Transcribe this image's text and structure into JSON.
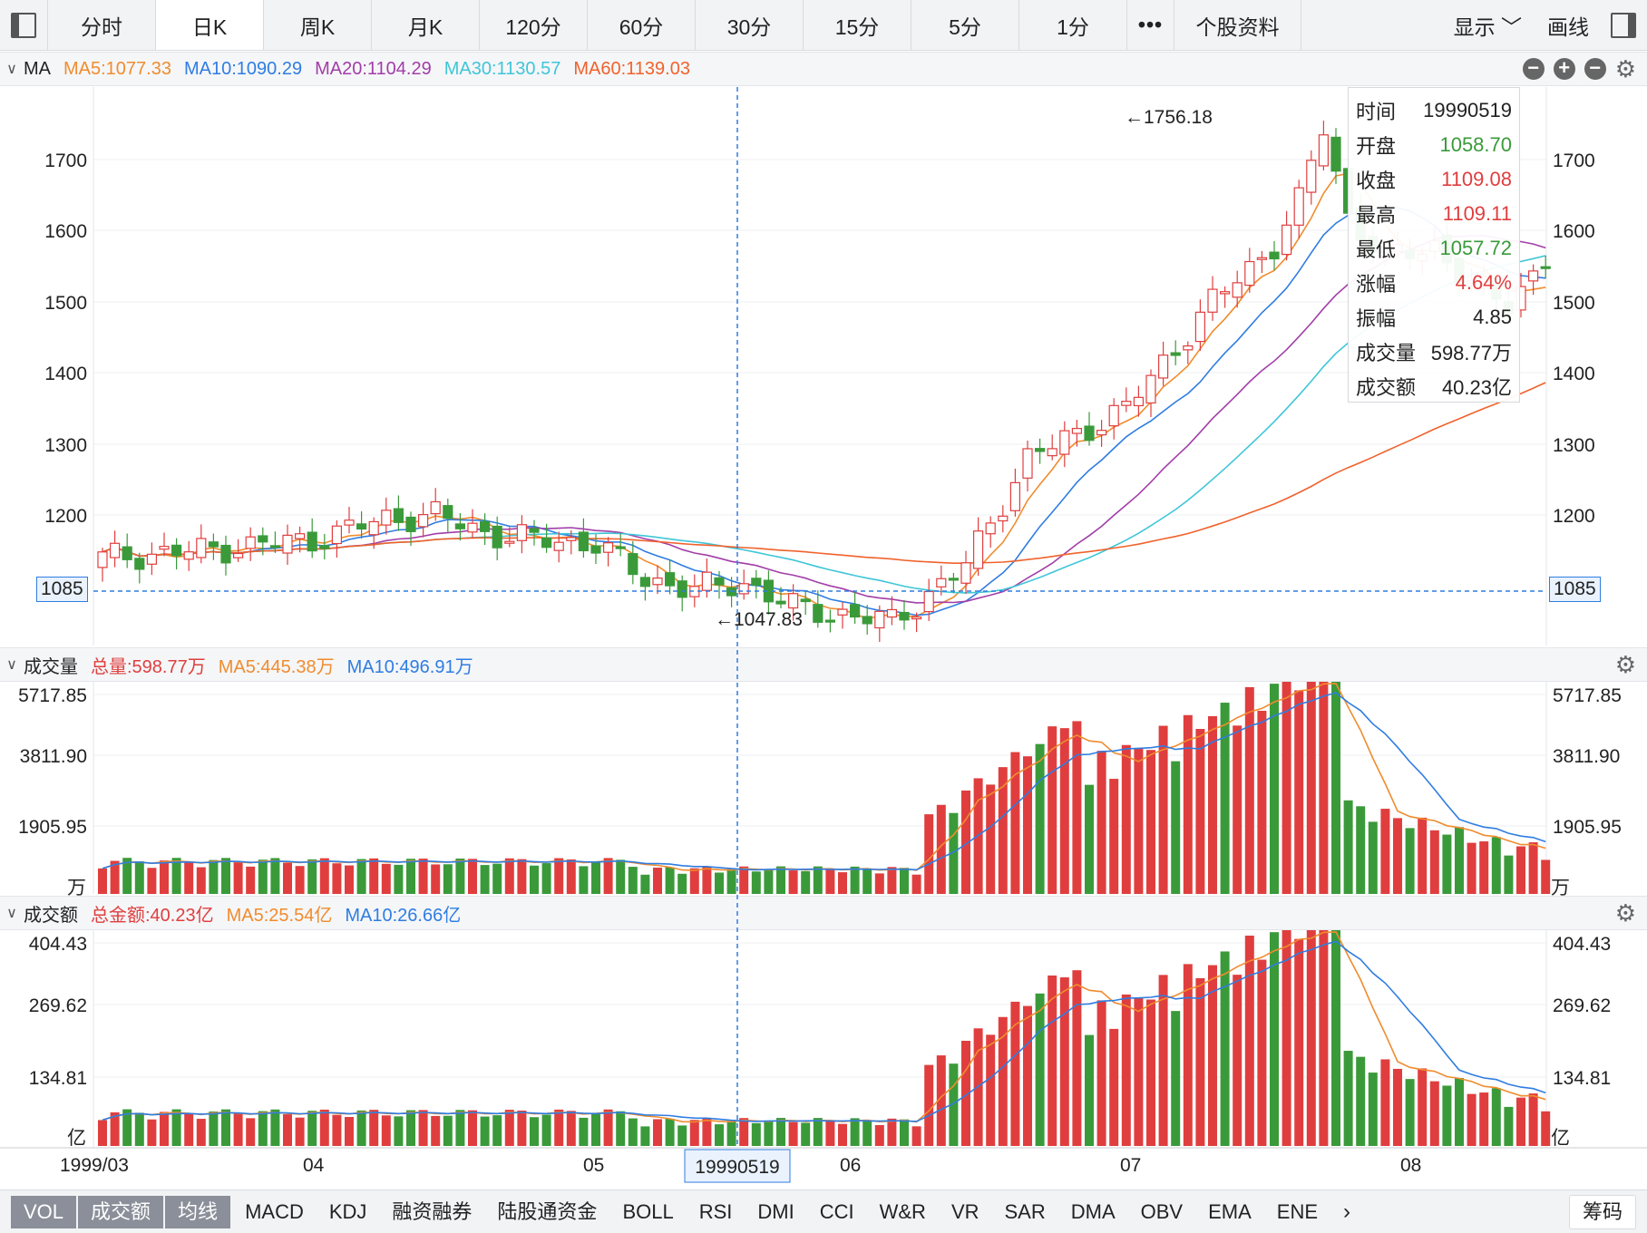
{
  "toolbar": {
    "tabs": [
      "分时",
      "日K",
      "周K",
      "月K",
      "120分",
      "60分",
      "30分",
      "15分",
      "5分",
      "1分",
      "•••",
      "个股资料"
    ],
    "active_index": 1,
    "right": {
      "display": "显示",
      "draw": "画线"
    }
  },
  "price_panel": {
    "title": "MA",
    "ma": [
      {
        "label": "MA5:1077.33",
        "color": "#f08c2e"
      },
      {
        "label": "MA10:1090.29",
        "color": "#2f7de1"
      },
      {
        "label": "MA20:1104.29",
        "color": "#a23ea8"
      },
      {
        "label": "MA30:1130.57",
        "color": "#3fc6d8"
      },
      {
        "label": "MA60:1139.03",
        "color": "#f0622c"
      }
    ],
    "y_ticks": [
      "1700",
      "1600",
      "1500",
      "1400",
      "1300",
      "1200"
    ],
    "crosshair_price": "1085",
    "high_label": "←1756.18",
    "low_label": "←1047.83"
  },
  "volume_panel": {
    "title": "成交量",
    "items": [
      {
        "label": "总量:598.77万",
        "color": "#e03e3e"
      },
      {
        "label": "MA5:445.38万",
        "color": "#f08c2e"
      },
      {
        "label": "MA10:496.91万",
        "color": "#2f7de1"
      }
    ],
    "y_ticks": [
      "5717.85",
      "3811.90",
      "1905.95"
    ],
    "unit": "万"
  },
  "amount_panel": {
    "title": "成交额",
    "items": [
      {
        "label": "总金额:40.23亿",
        "color": "#e03e3e"
      },
      {
        "label": "MA5:25.54亿",
        "color": "#f08c2e"
      },
      {
        "label": "MA10:26.66亿",
        "color": "#2f7de1"
      }
    ],
    "y_ticks": [
      "404.43",
      "269.62",
      "134.81"
    ],
    "unit": "亿"
  },
  "x_axis": {
    "labels": [
      "1999/03",
      "04",
      "05",
      "06",
      "07",
      "08"
    ],
    "crosshair_date": "19990519"
  },
  "info": {
    "rows": [
      {
        "k": "时间",
        "v": "19990519",
        "color": "#222222"
      },
      {
        "k": "开盘",
        "v": "1058.70",
        "color": "#3a9a3a"
      },
      {
        "k": "收盘",
        "v": "1109.08",
        "color": "#e03e3e"
      },
      {
        "k": "最高",
        "v": "1109.11",
        "color": "#e03e3e"
      },
      {
        "k": "最低",
        "v": "1057.72",
        "color": "#3a9a3a"
      },
      {
        "k": "涨幅",
        "v": "4.64%",
        "color": "#e03e3e"
      },
      {
        "k": "振幅",
        "v": "4.85",
        "color": "#222222"
      },
      {
        "k": "成交量",
        "v": "598.77万",
        "color": "#222222"
      },
      {
        "k": "成交额",
        "v": "40.23亿",
        "color": "#222222"
      }
    ]
  },
  "bottom_tabs": [
    "VOL",
    "成交额",
    "均线",
    "MACD",
    "KDJ",
    "融资融券",
    "陆股通资金",
    "BOLL",
    "RSI",
    "DMI",
    "CCI",
    "W&R",
    "VR",
    "SAR",
    "DMA",
    "OBV",
    "EMA",
    "ENE",
    "›"
  ],
  "bottom_selected": [
    0,
    1,
    2
  ],
  "bottom_last": "筹码",
  "colors": {
    "up": "#e03e3e",
    "down": "#3a9a3a",
    "crosshair": "#2f7de1"
  }
}
